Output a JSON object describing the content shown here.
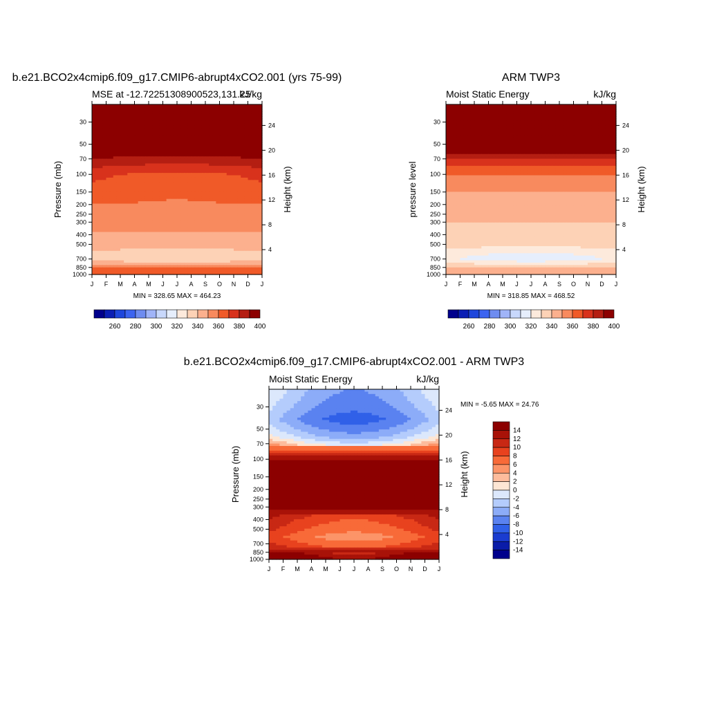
{
  "chart_data": [
    {
      "type": "heatmap",
      "id": "model",
      "title": "b.e21.BCO2x4cmip6.f09_g17.CMIP6-abrupt4xCO2.001 (yrs 75-99)",
      "left_string": "MSE at -12.72251308900523,131.25",
      "right_string": "kJ/kg",
      "xlabel": "",
      "ylabel": "Pressure (mb)",
      "ylabel_right": "Height (km)",
      "x_ticks": [
        "J",
        "F",
        "M",
        "A",
        "M",
        "J",
        "J",
        "A",
        "S",
        "O",
        "N",
        "D",
        "J"
      ],
      "y_ticks": [
        "30",
        "50",
        "70",
        "100",
        "150",
        "200",
        "250",
        "300",
        "400",
        "500",
        "700",
        "850",
        "1000"
      ],
      "y_ticks_right": [
        "24",
        "20",
        "16",
        "12",
        "8",
        "4"
      ],
      "ylim": [
        1000,
        20
      ],
      "stats": "MIN = 328.65 MAX = 464.23",
      "colorbar_labels": [
        "260",
        "280",
        "300",
        "320",
        "340",
        "360",
        "380",
        "400"
      ],
      "levels_kJkg": [
        250,
        260,
        270,
        280,
        290,
        300,
        310,
        320,
        330,
        340,
        350,
        360,
        370,
        380,
        390,
        400
      ],
      "profile_by_pressure": [
        {
          "p": 20,
          "value": 464
        },
        {
          "p": 50,
          "value": 410
        },
        {
          "p": 70,
          "value": 385
        },
        {
          "p": 100,
          "value": 368
        },
        {
          "p": 200,
          "value": 358
        },
        {
          "p": 500,
          "value": 345
        },
        {
          "p": 700,
          "value": 335
        },
        {
          "p": 850,
          "value": 360
        },
        {
          "p": 1000,
          "value": 372
        }
      ],
      "min": 328.65,
      "max": 464.23
    },
    {
      "type": "heatmap",
      "id": "obs",
      "title": "ARM TWP3",
      "left_string": "Moist Static Energy",
      "right_string": "kJ/kg",
      "ylabel": "pressure level",
      "ylabel_right": "Height (km)",
      "x_ticks": [
        "J",
        "F",
        "M",
        "A",
        "M",
        "J",
        "J",
        "A",
        "S",
        "O",
        "N",
        "D",
        "J"
      ],
      "y_ticks": [
        "30",
        "50",
        "70",
        "100",
        "150",
        "200",
        "250",
        "300",
        "400",
        "500",
        "700",
        "850",
        "1000"
      ],
      "y_ticks_right": [
        "24",
        "20",
        "16",
        "12",
        "8",
        "4"
      ],
      "ylim": [
        1000,
        20
      ],
      "stats": "MIN = 318.85 MAX = 468.52",
      "colorbar_labels": [
        "260",
        "280",
        "300",
        "320",
        "340",
        "360",
        "380",
        "400"
      ],
      "profile_by_pressure": [
        {
          "p": 20,
          "value": 468
        },
        {
          "p": 50,
          "value": 410
        },
        {
          "p": 70,
          "value": 378
        },
        {
          "p": 100,
          "value": 360
        },
        {
          "p": 150,
          "value": 350
        },
        {
          "p": 300,
          "value": 340
        },
        {
          "p": 500,
          "value": 333
        },
        {
          "p": 700,
          "value": 322
        },
        {
          "p": 850,
          "value": 340
        },
        {
          "p": 1000,
          "value": 350
        }
      ],
      "min": 318.85,
      "max": 468.52
    },
    {
      "type": "heatmap",
      "id": "diff",
      "title": "b.e21.BCO2x4cmip6.f09_g17.CMIP6-abrupt4xCO2.001 - ARM TWP3",
      "left_string": "Moist Static Energy",
      "right_string": "kJ/kg",
      "ylabel": "Pressure (mb)",
      "ylabel_right": "Height (km)",
      "x_ticks": [
        "J",
        "F",
        "M",
        "A",
        "M",
        "J",
        "J",
        "A",
        "S",
        "O",
        "N",
        "D",
        "J"
      ],
      "y_ticks": [
        "30",
        "50",
        "70",
        "100",
        "150",
        "200",
        "250",
        "300",
        "400",
        "500",
        "700",
        "850",
        "1000"
      ],
      "y_ticks_right": [
        "24",
        "20",
        "16",
        "12",
        "8",
        "4"
      ],
      "ylim": [
        1000,
        20
      ],
      "stats": "MIN =  -5.65 MAX =  24.76",
      "colorbar_labels": [
        "14",
        "12",
        "10",
        "8",
        "6",
        "4",
        "2",
        "0",
        "-2",
        "-4",
        "-6",
        "-8",
        "-10",
        "-12",
        "-14"
      ],
      "profile_by_pressure": [
        {
          "p": 20,
          "value": 0
        },
        {
          "p": 40,
          "value": -3
        },
        {
          "p": 60,
          "value": 1
        },
        {
          "p": 80,
          "value": 8
        },
        {
          "p": 100,
          "value": 14
        },
        {
          "p": 200,
          "value": 17
        },
        {
          "p": 400,
          "value": 12
        },
        {
          "p": 600,
          "value": 9
        },
        {
          "p": 850,
          "value": 13
        },
        {
          "p": 1000,
          "value": 16
        }
      ],
      "min": -5.65,
      "max": 24.76
    }
  ],
  "colors": {
    "sequential": [
      "#00008c",
      "#0a1eb4",
      "#1e46dc",
      "#3c64f0",
      "#6e8cf0",
      "#a0b4f8",
      "#c8d8fc",
      "#e6eefc",
      "#fdeadc",
      "#fdd2b6",
      "#fcb08e",
      "#f88a5e",
      "#f05a28",
      "#d8321c",
      "#b41e12",
      "#8c0000"
    ],
    "diverging": [
      "#8c0000",
      "#a81208",
      "#c82814",
      "#e8421e",
      "#f86a38",
      "#fc9468",
      "#fdbc9c",
      "#fde6d4",
      "#dce8fc",
      "#b4ccfc",
      "#8cacf8",
      "#5a82f0",
      "#3060e8",
      "#1a3cd0",
      "#0a1ca8",
      "#00008c"
    ]
  }
}
